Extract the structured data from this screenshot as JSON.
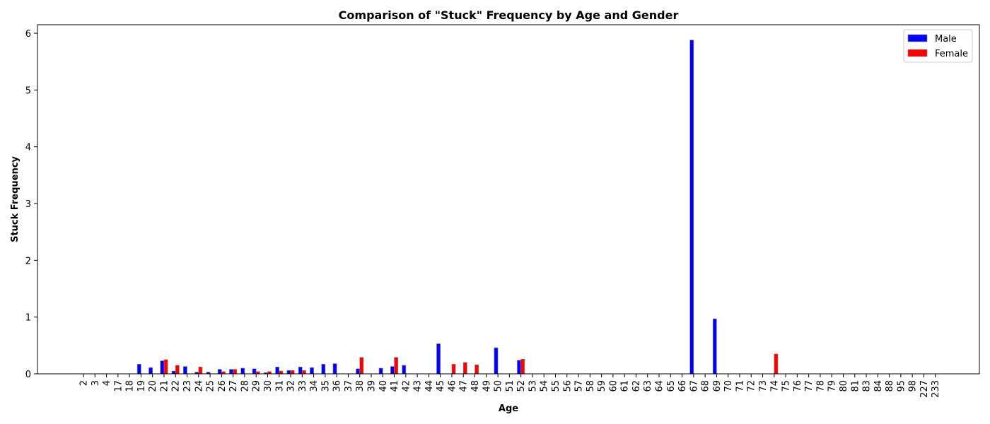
{
  "chart_data": {
    "type": "bar",
    "title": "Comparison of \"Stuck\" Frequency by Age and Gender",
    "xlabel": "Age",
    "ylabel": "Stuck Frequency",
    "ylim": [
      0,
      6.15
    ],
    "yticks": [
      "0",
      "1",
      "2",
      "3",
      "4",
      "5",
      "6"
    ],
    "categories": [
      "2",
      "3",
      "4",
      "17",
      "18",
      "19",
      "20",
      "21",
      "22",
      "23",
      "24",
      "25",
      "26",
      "27",
      "28",
      "29",
      "30",
      "31",
      "32",
      "33",
      "34",
      "35",
      "36",
      "37",
      "38",
      "39",
      "40",
      "41",
      "42",
      "43",
      "44",
      "45",
      "46",
      "47",
      "48",
      "49",
      "50",
      "51",
      "52",
      "53",
      "54",
      "55",
      "56",
      "57",
      "58",
      "59",
      "60",
      "61",
      "62",
      "63",
      "64",
      "65",
      "66",
      "67",
      "68",
      "69",
      "70",
      "71",
      "72",
      "73",
      "74",
      "75",
      "76",
      "77",
      "78",
      "79",
      "80",
      "81",
      "83",
      "84",
      "88",
      "95",
      "98",
      "227",
      "233"
    ],
    "series": [
      {
        "name": "Male",
        "color": "#0000ff",
        "values": [
          0,
          0,
          0,
          0,
          0,
          0.17,
          0.11,
          0.23,
          0.05,
          0.13,
          0.03,
          0.03,
          0.08,
          0.08,
          0.1,
          0.09,
          0.02,
          0.12,
          0.06,
          0.12,
          0.11,
          0.17,
          0.18,
          0,
          0.09,
          0,
          0.1,
          0.13,
          0.15,
          0,
          0,
          0.53,
          0,
          0,
          0,
          0,
          0.46,
          0,
          0.24,
          0,
          0,
          0,
          0,
          0,
          0,
          0,
          0,
          0,
          0,
          0,
          0,
          0,
          0,
          5.88,
          0,
          0.97,
          0,
          0,
          0,
          0,
          0,
          0,
          0,
          0,
          0,
          0,
          0,
          0,
          0,
          0,
          0,
          0,
          0,
          0,
          0
        ]
      },
      {
        "name": "Female",
        "color": "#ff0000",
        "values": [
          0,
          0,
          0,
          0,
          0,
          0,
          0,
          0.25,
          0.15,
          0,
          0.12,
          0,
          0.04,
          0.08,
          0,
          0.04,
          0.04,
          0.05,
          0.06,
          0.06,
          0,
          0,
          0,
          0,
          0.29,
          0,
          0,
          0.29,
          0,
          0,
          0,
          0,
          0.17,
          0.2,
          0.16,
          0,
          0,
          0,
          0.26,
          0,
          0,
          0,
          0,
          0,
          0,
          0,
          0,
          0,
          0,
          0,
          0,
          0,
          0,
          0,
          0,
          0,
          0,
          0,
          0,
          0,
          0.35,
          0,
          0,
          0,
          0,
          0,
          0,
          0,
          0,
          0,
          0,
          0,
          0,
          0,
          0
        ]
      }
    ],
    "legend_position": "top-right",
    "grid": false
  }
}
